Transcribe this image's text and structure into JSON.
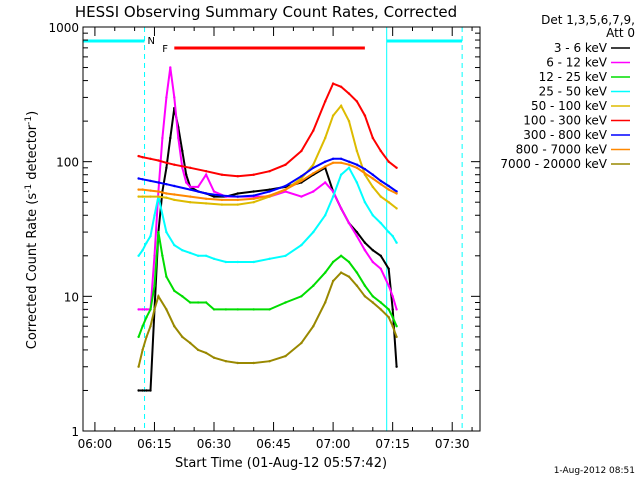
{
  "chart_data": {
    "type": "line",
    "title": "HESSI Observing Summary Count Rates, Corrected",
    "xlabel": "Start Time (01-Aug-12 05:57:42)",
    "ylabel": "Corrected Count Rate (s",
    "ylabel_sup1": "-1",
    "ylabel_mid": " detector",
    "ylabel_sup2": "-1",
    "ylabel_end": ")",
    "x_ticks": [
      "06:00",
      "06:15",
      "06:30",
      "06:45",
      "07:00",
      "07:15",
      "07:30"
    ],
    "x_tick_minutes": [
      0,
      15,
      30,
      45,
      60,
      75,
      90
    ],
    "xlim_minutes": [
      -3,
      97
    ],
    "y_ticks": [
      "1",
      "10",
      "100",
      "1000"
    ],
    "ylog": true,
    "ylim": [
      1,
      1000
    ],
    "legend_title": [
      "Det 1,3,5,6,7,9,",
      "Att 0"
    ],
    "legend_position": "right",
    "timestamp": "1-Aug-2012 08:51",
    "night_marker": "N",
    "flare_marker": "F",
    "flare_interval_minutes": [
      20,
      68
    ],
    "night_intervals_minutes": [
      [
        -3,
        12.5
      ],
      [
        73.5,
        92.5
      ]
    ],
    "data_gap_minutes": [
      [
        -3,
        14.5
      ],
      [
        74.5,
        97
      ]
    ],
    "series": [
      {
        "name": "3 - 6 keV",
        "color": "#000000",
        "x": [
          11,
          12,
          13,
          14,
          15,
          16,
          17,
          18,
          19,
          20,
          21,
          22,
          23,
          24,
          26,
          28,
          30,
          33,
          36,
          40,
          44,
          48,
          52,
          55,
          58,
          60,
          62,
          64,
          66,
          68,
          70,
          72,
          74,
          75,
          76
        ],
        "y": [
          2,
          2,
          2,
          2,
          8,
          30,
          60,
          90,
          150,
          250,
          180,
          120,
          80,
          65,
          60,
          58,
          55,
          55,
          58,
          60,
          62,
          65,
          70,
          80,
          90,
          60,
          45,
          35,
          30,
          25,
          22,
          20,
          16,
          8,
          3
        ]
      },
      {
        "name": "6 - 12 keV",
        "color": "#ff00ff",
        "x": [
          11,
          12,
          13,
          14,
          15,
          16,
          17,
          18,
          19,
          20,
          21,
          22,
          23,
          24,
          26,
          28,
          30,
          33,
          36,
          40,
          44,
          48,
          52,
          55,
          58,
          60,
          62,
          64,
          66,
          68,
          70,
          72,
          74,
          75,
          76
        ],
        "y": [
          8,
          8,
          8,
          8,
          20,
          60,
          150,
          300,
          500,
          300,
          150,
          90,
          70,
          65,
          65,
          80,
          60,
          55,
          55,
          55,
          55,
          60,
          55,
          60,
          70,
          60,
          45,
          35,
          28,
          22,
          18,
          16,
          12,
          10,
          8
        ]
      },
      {
        "name": "12 - 25 keV",
        "color": "#00dd00",
        "x": [
          11,
          12,
          13,
          14,
          15,
          16,
          17,
          18,
          20,
          22,
          24,
          26,
          28,
          30,
          33,
          36,
          40,
          44,
          48,
          52,
          55,
          58,
          60,
          62,
          64,
          66,
          68,
          70,
          72,
          74,
          75,
          76
        ],
        "y": [
          5,
          6,
          7,
          8,
          12,
          30,
          20,
          14,
          11,
          10,
          9,
          9,
          9,
          8,
          8,
          8,
          8,
          8,
          9,
          10,
          12,
          15,
          18,
          20,
          18,
          15,
          12,
          10,
          9,
          8,
          7,
          6
        ]
      },
      {
        "name": "25 - 50 keV",
        "color": "#00ffff",
        "x": [
          11,
          12,
          13,
          14,
          15,
          16,
          18,
          20,
          22,
          24,
          26,
          28,
          30,
          33,
          36,
          40,
          44,
          48,
          52,
          55,
          58,
          60,
          62,
          64,
          66,
          68,
          70,
          72,
          74,
          75,
          76
        ],
        "y": [
          20,
          22,
          25,
          28,
          40,
          55,
          30,
          24,
          22,
          21,
          20,
          20,
          19,
          18,
          18,
          18,
          19,
          20,
          24,
          30,
          40,
          55,
          80,
          90,
          70,
          50,
          40,
          35,
          30,
          28,
          25
        ]
      },
      {
        "name": "50 - 100 keV",
        "color": "#ddbb00",
        "x": [
          11,
          12,
          14,
          16,
          18,
          20,
          24,
          28,
          32,
          36,
          40,
          44,
          48,
          52,
          55,
          58,
          60,
          62,
          64,
          66,
          68,
          70,
          72,
          74,
          76
        ],
        "y": [
          55,
          55,
          55,
          55,
          54,
          52,
          50,
          49,
          48,
          48,
          50,
          55,
          62,
          75,
          95,
          150,
          220,
          260,
          200,
          120,
          80,
          65,
          55,
          50,
          45
        ]
      },
      {
        "name": "100 - 300 keV",
        "color": "#ff0000",
        "x": [
          11,
          12,
          14,
          16,
          18,
          20,
          24,
          28,
          32,
          36,
          40,
          44,
          48,
          52,
          55,
          58,
          60,
          62,
          64,
          66,
          68,
          70,
          72,
          74,
          76
        ],
        "y": [
          110,
          108,
          105,
          102,
          98,
          95,
          90,
          85,
          80,
          78,
          80,
          85,
          95,
          120,
          170,
          280,
          380,
          360,
          320,
          280,
          220,
          150,
          120,
          100,
          90
        ]
      },
      {
        "name": "300 - 800 keV",
        "color": "#0000ff",
        "x": [
          11,
          12,
          14,
          16,
          18,
          20,
          24,
          28,
          32,
          36,
          40,
          44,
          48,
          52,
          55,
          58,
          60,
          62,
          64,
          66,
          68,
          70,
          72,
          74,
          76
        ],
        "y": [
          75,
          74,
          72,
          70,
          68,
          66,
          62,
          58,
          56,
          55,
          56,
          60,
          66,
          78,
          90,
          100,
          105,
          105,
          100,
          95,
          88,
          80,
          72,
          66,
          60
        ]
      },
      {
        "name": "800 - 7000 keV",
        "color": "#ff8800",
        "x": [
          11,
          12,
          14,
          16,
          18,
          20,
          24,
          28,
          32,
          36,
          40,
          44,
          48,
          52,
          55,
          58,
          60,
          62,
          64,
          66,
          68,
          70,
          72,
          74,
          76
        ],
        "y": [
          62,
          62,
          61,
          60,
          58,
          57,
          55,
          53,
          52,
          52,
          53,
          56,
          62,
          72,
          82,
          92,
          98,
          98,
          95,
          90,
          82,
          75,
          68,
          62,
          58
        ]
      },
      {
        "name": "7000 - 20000 keV",
        "color": "#998800",
        "x": [
          11,
          12,
          13,
          14,
          15,
          16,
          18,
          20,
          22,
          24,
          26,
          28,
          30,
          33,
          36,
          40,
          44,
          48,
          52,
          55,
          58,
          60,
          62,
          64,
          66,
          68,
          70,
          72,
          74,
          75,
          76
        ],
        "y": [
          3,
          4,
          5,
          6,
          8,
          10,
          8,
          6,
          5,
          4.5,
          4,
          3.8,
          3.5,
          3.3,
          3.2,
          3.2,
          3.3,
          3.6,
          4.5,
          6,
          9,
          13,
          15,
          14,
          12,
          10,
          9,
          8,
          7,
          6,
          5
        ]
      }
    ]
  }
}
